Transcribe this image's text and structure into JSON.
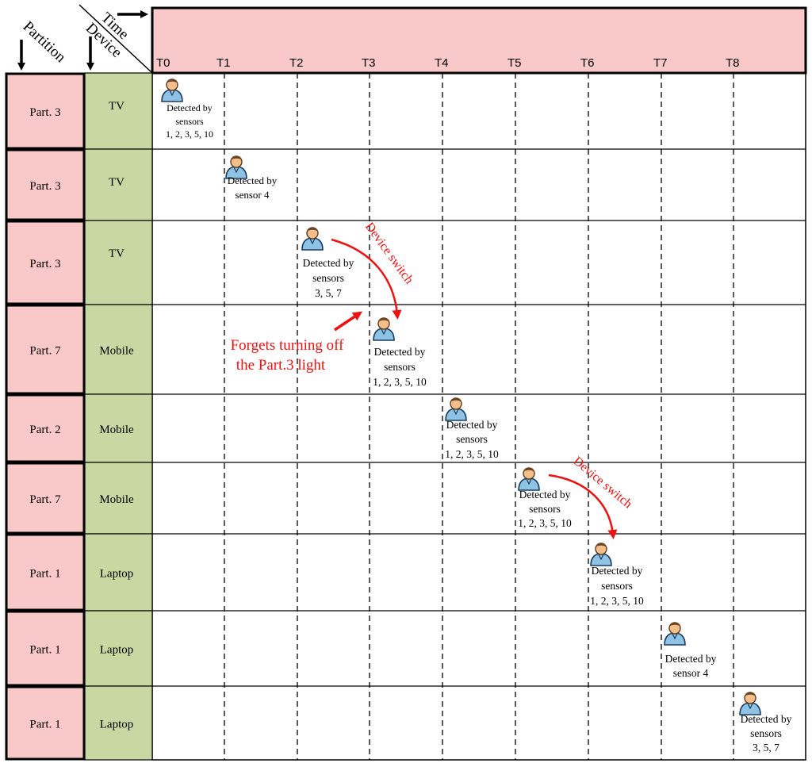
{
  "header": {
    "time_label": "Time",
    "device_label": "Device",
    "partition_label": "Partition"
  },
  "time_ticks": [
    "T0",
    "T1",
    "T2",
    "T3",
    "T4",
    "T5",
    "T6",
    "T7",
    "T8"
  ],
  "rows": [
    {
      "partition": "Part. 3",
      "device": "TV"
    },
    {
      "partition": "Part. 3",
      "device": "TV"
    },
    {
      "partition": "Part. 3",
      "device": "TV"
    },
    {
      "partition": "Part. 7",
      "device": "Mobile"
    },
    {
      "partition": "Part. 2",
      "device": "Mobile"
    },
    {
      "partition": "Part. 7",
      "device": "Mobile"
    },
    {
      "partition": "Part. 1",
      "device": "Laptop"
    },
    {
      "partition": "Part. 1",
      "device": "Laptop"
    },
    {
      "partition": "Part. 1",
      "device": "Laptop"
    }
  ],
  "events": [
    {
      "row": 0,
      "time": "T0",
      "lines": [
        "Detected by",
        "sensors",
        "1, 2, 3, 5, 10"
      ]
    },
    {
      "row": 1,
      "time": "T1",
      "lines": [
        "Detected by",
        "sensor 4"
      ]
    },
    {
      "row": 2,
      "time": "T2",
      "lines": [
        "Detected by",
        "sensors",
        "3, 5, 7"
      ]
    },
    {
      "row": 3,
      "time": "T3",
      "lines": [
        "Detected by",
        "sensors",
        "1, 2, 3, 5, 10"
      ]
    },
    {
      "row": 4,
      "time": "T4",
      "lines": [
        "Detected by",
        "sensors",
        "1, 2, 3, 5, 10"
      ]
    },
    {
      "row": 5,
      "time": "T5",
      "lines": [
        "Detected by",
        "sensors",
        "1, 2, 3, 5, 10"
      ]
    },
    {
      "row": 6,
      "time": "T6",
      "lines": [
        "Detected by",
        "sensors",
        "1, 2, 3, 5, 10"
      ]
    },
    {
      "row": 7,
      "time": "T7",
      "lines": [
        "Detected by",
        "sensor 4"
      ]
    },
    {
      "row": 8,
      "time": "T8",
      "lines": [
        "Detected by",
        "sensors",
        "3, 5, 7"
      ]
    }
  ],
  "annotations": {
    "device_switch_1": "Device switch",
    "device_switch_2": "Device switch",
    "forget_note": [
      "Forgets turning off",
      "the Part.3 light"
    ]
  },
  "colors": {
    "partition_fill": "#f9c8c8",
    "device_fill": "#c9d7a3",
    "time_header_fill": "#f9c8c8",
    "accent_red": "#ee1111",
    "person_body": "#8fc3e6",
    "person_head": "#f4bf8a"
  }
}
